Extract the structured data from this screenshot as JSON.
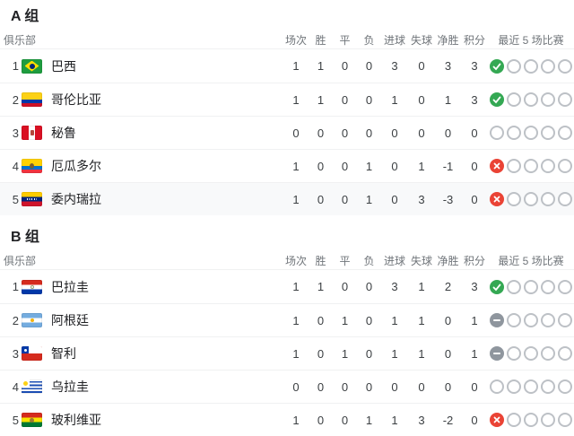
{
  "table": {
    "club_column_label": "俱乐部",
    "stat_columns": [
      "场次",
      "胜",
      "平",
      "负",
      "进球",
      "失球",
      "净胜",
      "积分"
    ],
    "last5_column_label": "最近 5 场比赛"
  },
  "status_colors": {
    "win": "#34a853",
    "loss": "#ea4335",
    "draw": "#8f969e",
    "empty_border": "#bdc1c6"
  },
  "groups": [
    {
      "title": "A 组",
      "rows": [
        {
          "rank": "1",
          "team": "巴西",
          "flag": "brazil",
          "stats": [
            "1",
            "1",
            "0",
            "0",
            "3",
            "0",
            "3",
            "3"
          ],
          "last5": [
            "win",
            "empty",
            "empty",
            "empty",
            "empty"
          ],
          "highlighted": false
        },
        {
          "rank": "2",
          "team": "哥伦比亚",
          "flag": "colombia",
          "stats": [
            "1",
            "1",
            "0",
            "0",
            "1",
            "0",
            "1",
            "3"
          ],
          "last5": [
            "win",
            "empty",
            "empty",
            "empty",
            "empty"
          ],
          "highlighted": false
        },
        {
          "rank": "3",
          "team": "秘鲁",
          "flag": "peru",
          "stats": [
            "0",
            "0",
            "0",
            "0",
            "0",
            "0",
            "0",
            "0"
          ],
          "last5": [
            "empty",
            "empty",
            "empty",
            "empty",
            "empty"
          ],
          "highlighted": false
        },
        {
          "rank": "4",
          "team": "厄瓜多尔",
          "flag": "ecuador",
          "stats": [
            "1",
            "0",
            "0",
            "1",
            "0",
            "1",
            "-1",
            "0"
          ],
          "last5": [
            "loss",
            "empty",
            "empty",
            "empty",
            "empty"
          ],
          "highlighted": false
        },
        {
          "rank": "5",
          "team": "委内瑞拉",
          "flag": "venezuela",
          "stats": [
            "1",
            "0",
            "0",
            "1",
            "0",
            "3",
            "-3",
            "0"
          ],
          "last5": [
            "loss",
            "empty",
            "empty",
            "empty",
            "empty"
          ],
          "highlighted": true
        }
      ]
    },
    {
      "title": "B 组",
      "rows": [
        {
          "rank": "1",
          "team": "巴拉圭",
          "flag": "paraguay",
          "stats": [
            "1",
            "1",
            "0",
            "0",
            "3",
            "1",
            "2",
            "3"
          ],
          "last5": [
            "win",
            "empty",
            "empty",
            "empty",
            "empty"
          ],
          "highlighted": false
        },
        {
          "rank": "2",
          "team": "阿根廷",
          "flag": "argentina",
          "stats": [
            "1",
            "0",
            "1",
            "0",
            "1",
            "1",
            "0",
            "1"
          ],
          "last5": [
            "draw",
            "empty",
            "empty",
            "empty",
            "empty"
          ],
          "highlighted": false
        },
        {
          "rank": "3",
          "team": "智利",
          "flag": "chile",
          "stats": [
            "1",
            "0",
            "1",
            "0",
            "1",
            "1",
            "0",
            "1"
          ],
          "last5": [
            "draw",
            "empty",
            "empty",
            "empty",
            "empty"
          ],
          "highlighted": false
        },
        {
          "rank": "4",
          "team": "乌拉圭",
          "flag": "uruguay",
          "stats": [
            "0",
            "0",
            "0",
            "0",
            "0",
            "0",
            "0",
            "0"
          ],
          "last5": [
            "empty",
            "empty",
            "empty",
            "empty",
            "empty"
          ],
          "highlighted": false
        },
        {
          "rank": "5",
          "team": "玻利维亚",
          "flag": "bolivia",
          "stats": [
            "1",
            "0",
            "0",
            "1",
            "1",
            "3",
            "-2",
            "0"
          ],
          "last5": [
            "loss",
            "empty",
            "empty",
            "empty",
            "empty"
          ],
          "highlighted": false
        }
      ]
    }
  ]
}
